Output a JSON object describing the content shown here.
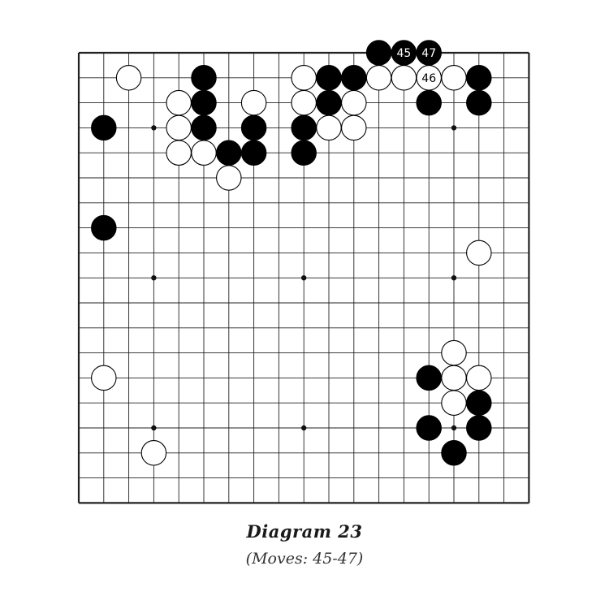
{
  "diagram": {
    "title": "Diagram 23",
    "subtitle": "(Moves: 45-47)"
  },
  "board": {
    "size": 19,
    "star_points": [
      [
        3,
        3
      ],
      [
        3,
        9
      ],
      [
        3,
        15
      ],
      [
        9,
        3
      ],
      [
        9,
        9
      ],
      [
        9,
        15
      ],
      [
        15,
        3
      ],
      [
        15,
        9
      ],
      [
        15,
        15
      ]
    ],
    "stones": [
      {
        "color": "black",
        "col": 12,
        "row": 0
      },
      {
        "color": "black",
        "col": 13,
        "row": 0,
        "label": "45"
      },
      {
        "color": "black",
        "col": 14,
        "row": 0,
        "label": "47"
      },
      {
        "color": "white",
        "col": 2,
        "row": 1
      },
      {
        "color": "black",
        "col": 5,
        "row": 1
      },
      {
        "color": "white",
        "col": 9,
        "row": 1
      },
      {
        "color": "black",
        "col": 10,
        "row": 1
      },
      {
        "color": "black",
        "col": 11,
        "row": 1
      },
      {
        "color": "white",
        "col": 12,
        "row": 1
      },
      {
        "color": "white",
        "col": 13,
        "row": 1
      },
      {
        "color": "white",
        "col": 14,
        "row": 1,
        "label": "46"
      },
      {
        "color": "white",
        "col": 15,
        "row": 1
      },
      {
        "color": "black",
        "col": 16,
        "row": 1
      },
      {
        "color": "white",
        "col": 4,
        "row": 2
      },
      {
        "color": "black",
        "col": 5,
        "row": 2
      },
      {
        "color": "white",
        "col": 7,
        "row": 2
      },
      {
        "color": "white",
        "col": 9,
        "row": 2
      },
      {
        "color": "black",
        "col": 10,
        "row": 2
      },
      {
        "color": "white",
        "col": 11,
        "row": 2
      },
      {
        "color": "black",
        "col": 14,
        "row": 2
      },
      {
        "color": "black",
        "col": 16,
        "row": 2
      },
      {
        "color": "black",
        "col": 1,
        "row": 3
      },
      {
        "color": "white",
        "col": 4,
        "row": 3
      },
      {
        "color": "black",
        "col": 5,
        "row": 3
      },
      {
        "color": "black",
        "col": 7,
        "row": 3
      },
      {
        "color": "black",
        "col": 9,
        "row": 3
      },
      {
        "color": "white",
        "col": 10,
        "row": 3
      },
      {
        "color": "white",
        "col": 11,
        "row": 3
      },
      {
        "color": "white",
        "col": 4,
        "row": 4
      },
      {
        "color": "white",
        "col": 5,
        "row": 4
      },
      {
        "color": "black",
        "col": 6,
        "row": 4
      },
      {
        "color": "black",
        "col": 7,
        "row": 4
      },
      {
        "color": "black",
        "col": 9,
        "row": 4
      },
      {
        "color": "white",
        "col": 6,
        "row": 5
      },
      {
        "color": "black",
        "col": 1,
        "row": 7
      },
      {
        "color": "white",
        "col": 16,
        "row": 8
      },
      {
        "color": "white",
        "col": 15,
        "row": 12
      },
      {
        "color": "white",
        "col": 1,
        "row": 13
      },
      {
        "color": "black",
        "col": 14,
        "row": 13
      },
      {
        "color": "white",
        "col": 15,
        "row": 13
      },
      {
        "color": "white",
        "col": 16,
        "row": 13
      },
      {
        "color": "white",
        "col": 15,
        "row": 14
      },
      {
        "color": "black",
        "col": 16,
        "row": 14
      },
      {
        "color": "black",
        "col": 14,
        "row": 15
      },
      {
        "color": "black",
        "col": 16,
        "row": 15
      },
      {
        "color": "white",
        "col": 3,
        "row": 16
      },
      {
        "color": "black",
        "col": 15,
        "row": 16
      }
    ]
  }
}
